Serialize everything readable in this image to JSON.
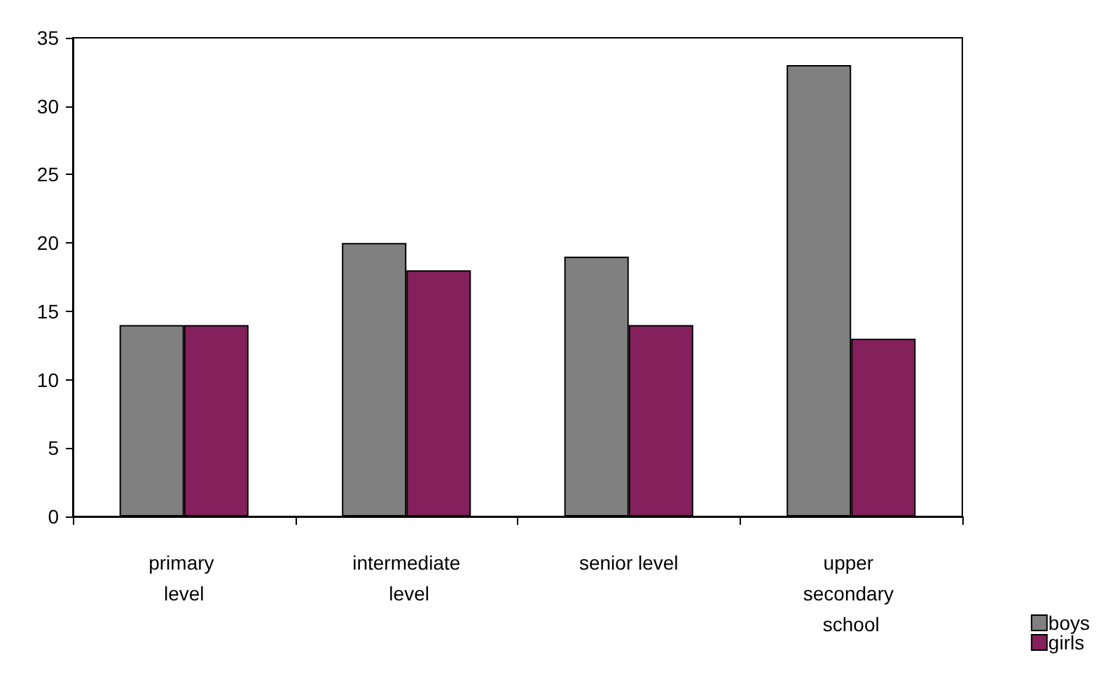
{
  "chart_data": {
    "type": "bar",
    "categories": [
      "primary level",
      "intermediate level",
      "senior level",
      "upper secondary school"
    ],
    "series": [
      {
        "name": "boys",
        "color": "#808080",
        "values": [
          14,
          20,
          19,
          33
        ]
      },
      {
        "name": "girls",
        "color": "#84205c",
        "values": [
          14,
          18,
          14,
          13
        ]
      }
    ],
    "ylim": [
      0,
      35
    ],
    "yticks": [
      0,
      5,
      10,
      15,
      20,
      25,
      30,
      35
    ],
    "grid": false,
    "legend": "bottom right"
  }
}
